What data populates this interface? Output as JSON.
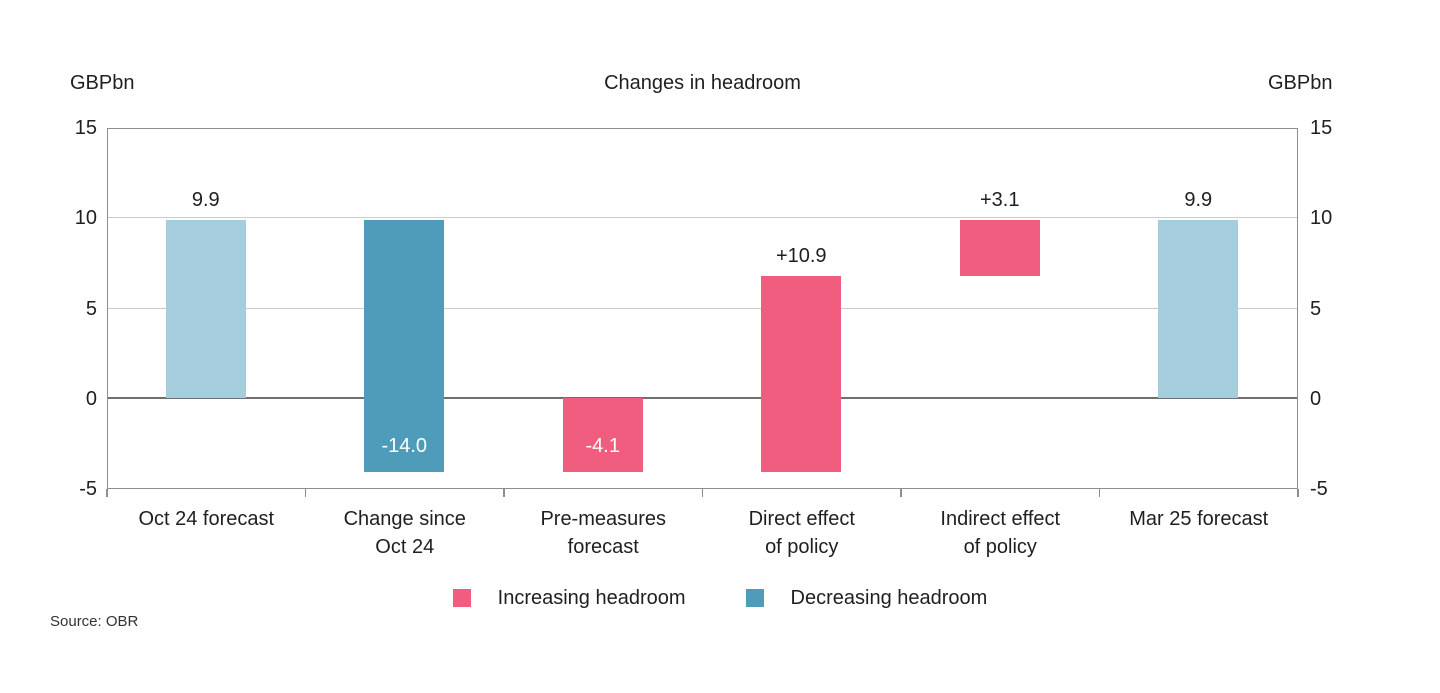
{
  "axis_units": {
    "left": "GBPbn",
    "right": "GBPbn"
  },
  "source_note": "Source: OBR",
  "colors": {
    "increasing": "#f05d7e",
    "decreasing": "#4f9cba",
    "forecast": "#a6cdde",
    "grid": "#cbcbcb",
    "zero_line": "#6f6f6f",
    "border": "#8e8e8e",
    "text": "#1f1f1f",
    "bar_label_inside": "#ffffff"
  },
  "legend": {
    "items": [
      {
        "label": "Increasing headroom",
        "color_key": "increasing"
      },
      {
        "label": "Decreasing headroom",
        "color_key": "decreasing"
      }
    ]
  },
  "chart_data": {
    "type": "bar",
    "subtype": "waterfall",
    "title": "Changes in headroom",
    "unit": "GBPbn",
    "ylim": [
      -5,
      15
    ],
    "yticks": [
      15,
      10,
      5,
      0,
      -5
    ],
    "gridlines": {
      "minor": [
        10,
        5
      ],
      "zero": 0
    },
    "grid": "horizontal",
    "legend_position": "bottom-center",
    "categories": [
      "Oct 24 forecast",
      "Change since Oct 24",
      "Pre-measures forecast",
      "Direct effect of policy",
      "Indirect effect of policy",
      "Mar 25 forecast"
    ],
    "bars": [
      {
        "category": "Oct 24 forecast",
        "display_category": "Oct 24 forecast",
        "value": 9.9,
        "from": 0,
        "to": 9.9,
        "label": "9.9",
        "label_position": "above",
        "color_key": "forecast"
      },
      {
        "category": "Change since Oct 24",
        "display_category": "Change since\nOct 24",
        "value": -14.0,
        "from": 9.9,
        "to": -4.1,
        "label": "-14.0",
        "label_position": "inside",
        "color_key": "decreasing"
      },
      {
        "category": "Pre-measures forecast",
        "display_category": "Pre-measures\nforecast",
        "value": -4.1,
        "from": 0,
        "to": -4.1,
        "label": "-4.1",
        "label_position": "inside",
        "color_key": "increasing"
      },
      {
        "category": "Direct effect of policy",
        "display_category": "Direct effect\nof policy",
        "value": 10.9,
        "from": -4.1,
        "to": 6.8,
        "label": "+10.9",
        "label_position": "above",
        "color_key": "increasing"
      },
      {
        "category": "Indirect effect of policy",
        "display_category": "Indirect effect\nof policy",
        "value": 3.1,
        "from": 6.8,
        "to": 9.9,
        "label": "+3.1",
        "label_position": "above",
        "color_key": "increasing"
      },
      {
        "category": "Mar 25 forecast",
        "display_category": "Mar 25 forecast",
        "value": 9.9,
        "from": 0,
        "to": 9.9,
        "label": "9.9",
        "label_position": "above",
        "color_key": "forecast"
      }
    ]
  }
}
